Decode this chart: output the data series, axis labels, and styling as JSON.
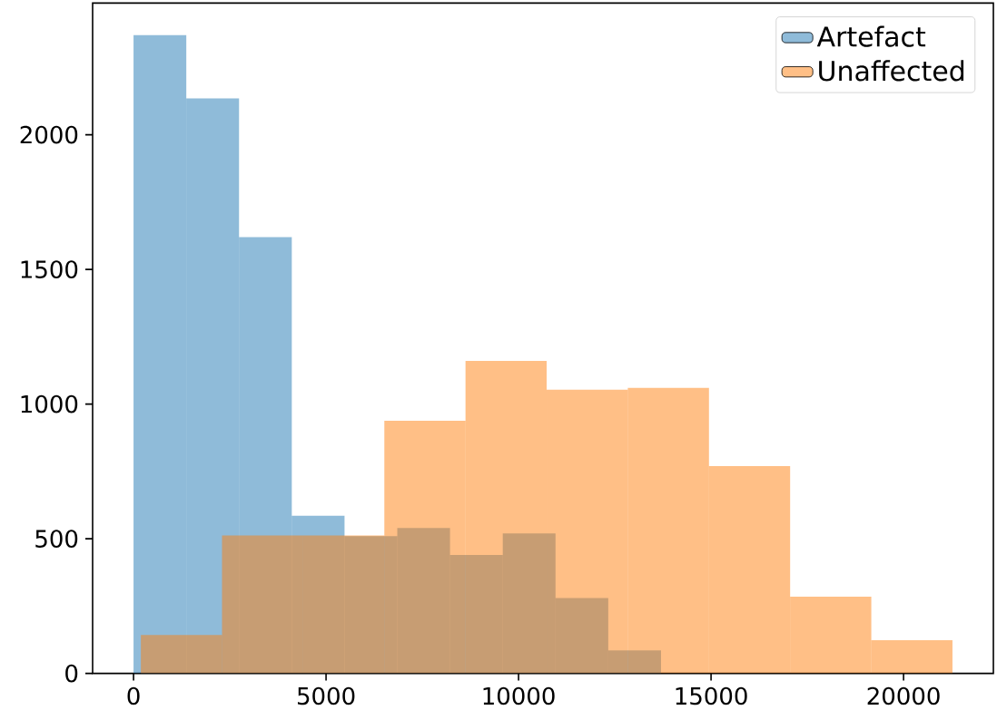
{
  "chart_data": {
    "type": "histogram",
    "xlim": [
      -1063,
      22333
    ],
    "ylim": [
      0,
      2489
    ],
    "xticks": [
      0,
      5000,
      10000,
      15000,
      20000
    ],
    "yticks": [
      0,
      500,
      1000,
      1500,
      2000
    ],
    "grid": false,
    "legend": "top right",
    "bins": [
      0,
      1370,
      2740,
      4110,
      5480,
      6850,
      8220,
      9590,
      10960,
      12330,
      13700
    ],
    "series": [
      {
        "name": "Artefact",
        "color": "#8fbbd9",
        "values": [
          2370,
          2135,
          1620,
          585,
          510,
          540,
          440,
          520,
          280,
          85
        ]
      },
      {
        "name": "Unaffected",
        "color": "#ffbf86",
        "bins": [
          190,
          2298,
          4406,
          6514,
          8622,
          10730,
          12838,
          14946,
          17054,
          19162,
          21270
        ],
        "values": [
          143,
          512,
          512,
          938,
          1160,
          1053,
          1060,
          770,
          285,
          123
        ]
      }
    ]
  }
}
